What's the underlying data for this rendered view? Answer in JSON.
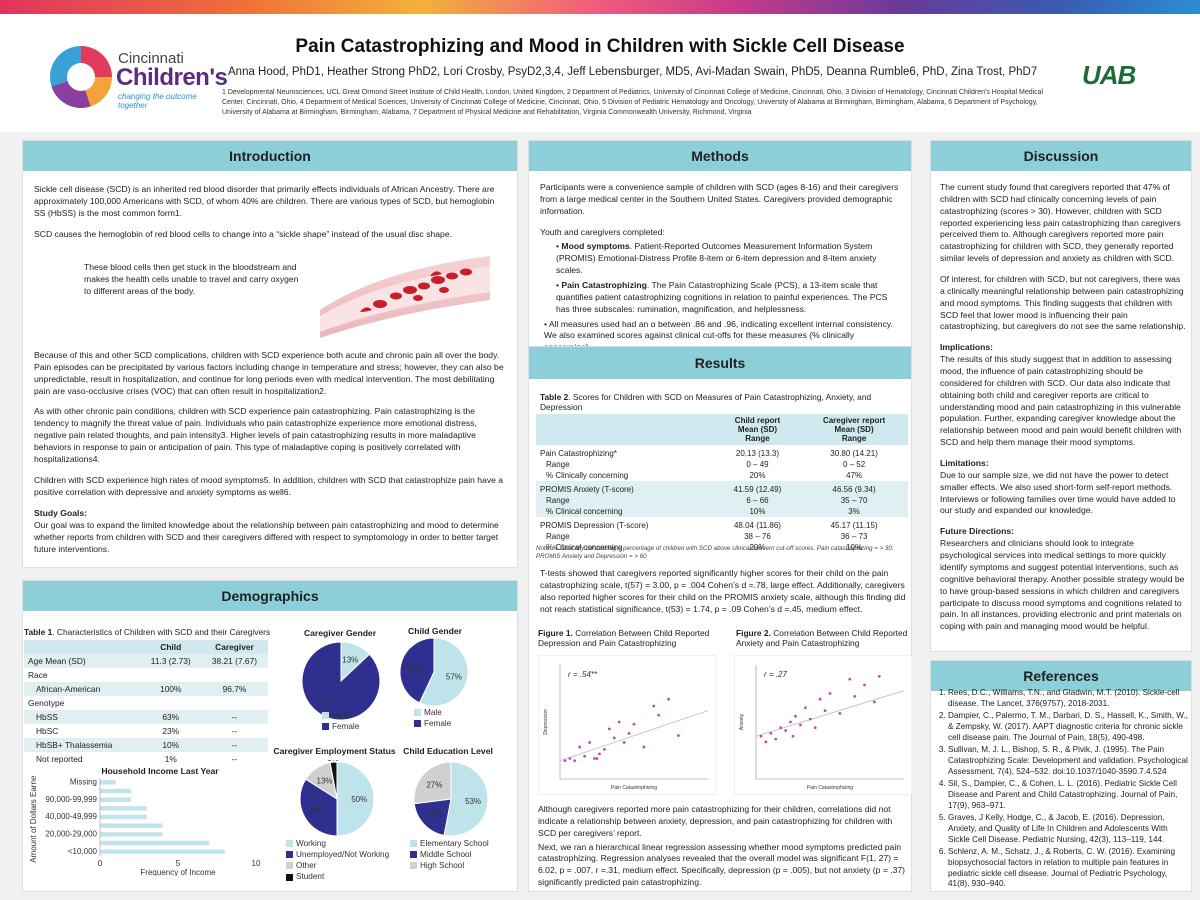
{
  "header": {
    "title": "Pain Catastrophizing and Mood in Children with Sickle Cell Disease",
    "authors": "Anna Hood, PhD1, Heather Strong PhD2, Lori Crosby, PsyD2,3,4, Jeff Lebensburger, MD5, Avi-Madan Swain, PhD5, Deanna Rumble6, PhD, Zina Trost, PhD7",
    "affiliations": "1 Developmental Neurosciences, UCL Great Ormond Street Institute of Child Health, London, United Kingdom, 2 Department of Pediatrics, University of Cincinnati College of Medicine, Cincinnati, Ohio, 3 Division of Hematology, Cincinnati Children's Hospital Medical Center, Cincinnati, Ohio, 4 Department of Medical Sciences, University of Cincinnati College of Medicine, Cincinnati, Ohio, 5 Division of Pediatric Hematology and Oncology, University of Alabama at Birmingham, Birmingham, Alabama, 6 Department of Psychology, University of Alabama at Birmingham, Birmingham, Alabama, 7 Department of Physical Medicine and Rehabilitation, Virginia Commonwealth University, Richmond, Virginia",
    "logo_left_line1": "Cincinnati",
    "logo_left_line2": "Children's",
    "logo_left_tagline": "changing the outcome together",
    "logo_right": "UAB"
  },
  "introduction": {
    "heading": "Introduction",
    "p1": "Sickle cell disease (SCD) is an inherited red blood disorder that primarily effects individuals of African Ancestry. There are approximately 100,000 Americans with SCD, of whom 40% are children. There are various types of SCD, but hemoglobin SS (HbSS) is the most common form1.",
    "p2": "SCD causes the hemoglobin of red blood cells to change into a “sickle shape” instead of the usual disc shape.",
    "p3": "These blood cells then get stuck in the bloodstream and makes the health cells unable to travel and carry oxygen to different areas of the body.",
    "p4": "Because of this and other SCD complications, children with SCD experience both acute and chronic pain all over the body. Pain episodes can be precipitated by various factors including change in temperature and stress; however, they can also be unpredictable, result in hospitalization, and continue for long periods even with medical intervention. The most debilitating pain are vaso-occlusive crises (VOC) that can often result in hospitalization2.",
    "p5": "As with other chronic pain conditions, children with SCD experience pain catastrophizing. Pain catastrophizing is the tendency to magnify the threat value of pain. Individuals who pain catastrophize experience more emotional distress, negative pain related thoughts, and pain intensity3. Higher levels of pain catastrophizing results in more maladaptive behaviors in response to pain or anticipation of pain. This type of maladaptive coping is positively correlated with hospitalizations4.",
    "p6": "Children with SCD experience high rates of mood symptoms5. In addition, children with SCD that catastrophize pain have a positive correlation with depressive and anxiety symptoms as well6.",
    "goals_label": "Study Goals:",
    "goals_text": "Our goal was to expand the limited knowledge about the relationship between pain catastrophizing and mood to determine whether reports from children with SCD and their caregivers differed with respect to symptomology in order to better target future interventions."
  },
  "demographics": {
    "heading": "Demographics",
    "table1_caption_label": "Table 1",
    "table1_caption": ". Characteristics of Children with SCD and their Caregivers",
    "table1_headers": [
      "",
      "Child",
      "Caregiver"
    ],
    "table1_rows": [
      [
        "Age Mean (SD)",
        "11.3 (2.73)",
        "38.21 (7.67)"
      ],
      [
        "Race",
        "",
        ""
      ],
      [
        "African-American",
        "100%",
        "96.7%"
      ],
      [
        "Genotype",
        "",
        ""
      ],
      [
        "HbSS",
        "63%",
        "--"
      ],
      [
        "HbSC",
        "23%",
        "--"
      ],
      [
        "HbSB+ Thalassemia",
        "10%",
        "--"
      ],
      [
        "Not reported",
        "1%",
        "--"
      ]
    ],
    "income_chart": {
      "title": "Household Income Last Year",
      "ylabel": "Amount of Dollars Earned",
      "xlabel": "Frequency of Income",
      "tick_labels_y": [
        "Missing",
        "90,000-99,999",
        "40,000-49,999",
        "20,000-29,000",
        "<10,000"
      ],
      "tick_labels_x": [
        "0",
        "5",
        "10"
      ]
    }
  },
  "methods": {
    "heading": "Methods",
    "p1": "Participants were a convenience sample of children with SCD (ages 8-16) and their caregivers from a large medical center in the Southern United States. Caregivers provided demographic information.",
    "p2": "Youth and caregivers completed:",
    "b1_label": "Mood symptoms",
    "b1_text": ". Patient-Reported Outcomes Measurement Information System (PROMIS) Emotional-Distress Profile 8-item or 6-item depression and 8-item anxiety scales.",
    "b2_label": "Pain Catastrophizing",
    "b2_text": ". The Pain Catastrophizing Scale (PCS), a 13-item scale that quantifies patient catastrophizing cognitions in relation to painful experiences. The PCS has three subscales: rumination, magnification, and helplessness.",
    "b3_text": "All measures used had an α between .86 and .96, indicating excellent internal consistency. We also examined scores against clinical cut-offs for these measures (% clinically concerning)."
  },
  "results": {
    "heading": "Results",
    "table2_caption_label": "Table 2",
    "table2_caption": ". Scores for Children with SCD on Measures of Pain Catastrophizing, Anxiety, and Depression",
    "table2_headers": [
      "",
      "Child report\nMean (SD)\nRange",
      "Caregiver report\nMean (SD)\nRange"
    ],
    "table2_rows": [
      [
        "Pain Catastrophizing*",
        "20.13 (13.3)",
        "30.80 (14.21)"
      ],
      [
        "Range",
        "0 – 49",
        "0 – 52"
      ],
      [
        "% Clinically concerning",
        "20%",
        "47%"
      ],
      [
        "PROMIS Anxiety (T-score)",
        "41.59 (12.49)",
        "46.56 (9.34)"
      ],
      [
        "Range",
        "6 – 66",
        "35 – 70"
      ],
      [
        "% Clinical concerning",
        "10%",
        "3%"
      ],
      [
        "PROMIS Depression (T-score)",
        "48.04 (11.86)",
        "45.17 (11.15)"
      ],
      [
        "Range",
        "38 – 76",
        "36 – 73"
      ],
      [
        "% Clinical concerning",
        "20%",
        "10%"
      ]
    ],
    "table2_note": "Note: % Clinically concerning = percentage of children with SCD above clinical concern cut-off scores. Pain catastrophizing = > 30, PROMIS Anxiety and Depression = > 60",
    "p1": "T-tests showed that caregivers reported significantly higher scores for their child on the pain catastrophizing scale, t(57) = 3.00, p = .004 Cohen’s d =.78, large effect. Additionally, caregivers also reported higher scores for their child on the PROMIS anxiety scale, although this finding did not reach statistical significance, t(53) = 1.74, p = .09 Cohen’s d =.45, medium effect.",
    "fig1_label": "Figure 1.",
    "fig1_caption": " Correlation Between Child Reported Depression and Pain Catastrophizing",
    "fig1_r": "r  = .54**",
    "fig1_ylabel": "Depression",
    "fig1_xlabel": "Pain Catastrophizing",
    "fig2_label": "Figure 2.",
    "fig2_caption": " Correlation Between Child Reported Anxiety and Pain Catastrophizing",
    "fig2_r": "r  = .27",
    "fig2_ylabel": "Anxiety",
    "fig2_xlabel": "Pain Catastrophizing",
    "p2": "Although caregivers reported more pain catastrophizing for their children, correlations did not indicate a relationship between anxiety, depression, and pain catastrophizing for children with SCD per caregivers’ report.",
    "p3": "Next, we ran a hierarchical linear regression assessing whether mood symptoms predicted pain catastrophizing. Regression analyses revealed that the overall model was significant F(1, 27) = 6.02, p = .007, r =.31, medium effect. Specifically, depression (p = .005), but not anxiety (p = .37) significantly predicted pain catastrophizing."
  },
  "discussion": {
    "heading": "Discussion",
    "p1": "The current study found that caregivers reported that 47% of children with SCD had clinically concerning levels of pain catastrophizing (scores > 30). However, children with SCD reported experiencing less pain catastrophizing than caregivers perceived them to. Although caregivers reported more pain catastrophizing for children with SCD, they generally reported similar levels of depression and anxiety as children with SCD.",
    "p2": "Of interest, for children with SCD, but not caregivers, there was a clinically meaningful relationship between pain catastrophizing and mood symptoms. This finding suggests that children with SCD feel that lower mood is influencing their pain catastrophizing, but caregivers do not see the same relationship.",
    "impl_label": "Implications:",
    "impl_text": "The results of this study suggest that in addition to assessing mood, the influence of pain catastrophizing should be considered for children with SCD. Our data also indicate that obtaining both child and caregiver reports are critical to understanding mood and pain catastrophizing in this vulnerable population. Further, expanding caregiver knowledge about the relationship between mood and pain would benefit children with SCD and help them manage their mood symptoms.",
    "lim_label": "Limitations:",
    "lim_text": "Due to our sample size, we did not have the power to detect smaller effects. We also used short-form self-report methods. Interviews or following families over time would have added to our study and expanded our knowledge.",
    "fut_label": "Future Directions:",
    "fut_text": "Researchers and clinicians should look to integrate psychological services into medical settings to more quickly identify symptoms and suggest potential interventions, such as cognitive behavioral therapy. Another possible strategy would be to have group-based sessions in which children and caregivers participate to discuss mood symptoms and cognitions related to pain. In all instances, providing electronic and print materials on coping with pain and managing mood would be helpful."
  },
  "references": {
    "heading": "References",
    "items": [
      "Rees, D.C., Williams, T.N., and Gladwin, M.T. (2010). Sickle-cell disease. The Lancet, 376(9757), 2018-2031.",
      "Dampier, C., Palermo, T. M., Darbari, D. S., Hassell, K., Smith, W., & Zempsky, W. (2017). AAPT diagnostic criteria for chronic sickle cell disease pain. The Journal of Pain, 18(5), 490-498.",
      "Sullivan, M. J. L., Bishop, S. R., & Pivik, J. (1995). The Pain Catastrophizing Scale: Development and validation. Psychological Assessment, 7(4), 524–532. doi:10.1037/1040-3590.7.4.524",
      "Sil, S., Dampier, C., & Cohen, L. L. (2016). Pediatric Sickle Cell Disease and Parent and Child Catastrophizing. Journal of Pain, 17(9), 963–971.",
      "Graves, J Kelly, Hodge, C., & Jacob, E. (2016). Depression, Anxiety, and Quality of Life In Children and Adolescents With Sickle Cell Disease. Pediatric Nursing, 42(3), 113–119, 144.",
      "Schlenz, A. M., Schatz, J., & Roberts, C. W. (2016). Examining biopsychosocial factors in relation to multiple pain features in pediatric sickle cell disease. Journal of Pediatric Psychology, 41(8), 930–940."
    ]
  },
  "colors": {
    "teal_head": "#8ccfd8",
    "navy": "#2e2f8f",
    "light_blue": "#bfe3ea",
    "grey": "#d0d0d0",
    "black": "#111111"
  },
  "chart_data": [
    {
      "type": "pie",
      "title": "Caregiver Gender",
      "categories": [
        "Male",
        "Female"
      ],
      "values": [
        13,
        87
      ],
      "labels": [
        "13%",
        "87%"
      ]
    },
    {
      "type": "pie",
      "title": "Child Gender",
      "categories": [
        "Male",
        "Female"
      ],
      "values": [
        57,
        43
      ],
      "labels": [
        "57%",
        "43%"
      ]
    },
    {
      "type": "pie",
      "title": "Caregiver Employment Status",
      "categories": [
        "Working",
        "Unemployed/Not Working",
        "Other",
        "Student"
      ],
      "values": [
        50,
        34,
        13,
        3
      ],
      "labels": [
        "50%",
        "34%",
        "13%",
        "3%"
      ]
    },
    {
      "type": "pie",
      "title": "Child Education Level",
      "categories": [
        "Elementary School",
        "Middle School",
        "High School"
      ],
      "values": [
        53,
        20,
        27
      ],
      "labels": [
        "53%",
        "20%",
        "27%"
      ]
    },
    {
      "type": "bar",
      "orientation": "horizontal",
      "title": "Household Income Last Year",
      "xlabel": "Frequency of Income",
      "ylabel": "Amount of Dollars Earned",
      "xlim": [
        0,
        10
      ],
      "categories": [
        "Missing",
        "",
        "90,000-99,999",
        "",
        "40,000-49,999",
        "",
        "20,000-29,000",
        "",
        "<10,000"
      ],
      "values": [
        1,
        2,
        2,
        3,
        3,
        4,
        4,
        7,
        8
      ]
    },
    {
      "type": "scatter",
      "title": "Figure 1. Correlation Between Child Reported Depression and Pain Catastrophizing",
      "xlabel": "Pain Catastrophizing",
      "ylabel": "Depression",
      "annotation": "r = .54**",
      "xlim": [
        0,
        60
      ],
      "ylim": [
        30,
        80
      ],
      "x": [
        2,
        4,
        6,
        8,
        10,
        12,
        14,
        15,
        16,
        18,
        20,
        22,
        24,
        26,
        28,
        30,
        34,
        38,
        40,
        44,
        48
      ],
      "y": [
        38,
        39,
        38,
        44,
        40,
        46,
        39,
        39,
        41,
        43,
        52,
        48,
        55,
        46,
        50,
        54,
        44,
        62,
        58,
        65,
        49
      ],
      "trend": [
        [
          0,
          38
        ],
        [
          60,
          60
        ]
      ]
    },
    {
      "type": "scatter",
      "title": "Figure 2. Correlation Between Child Reported Anxiety and Pain Catastrophizing",
      "xlabel": "Pain Catastrophizing",
      "ylabel": "Anxiety",
      "annotation": "r = .27",
      "xlim": [
        0,
        60
      ],
      "ylim": [
        0,
        80
      ],
      "x": [
        2,
        4,
        6,
        8,
        10,
        12,
        14,
        15,
        16,
        18,
        20,
        22,
        24,
        26,
        28,
        30,
        34,
        38,
        40,
        44,
        48,
        50
      ],
      "y": [
        30,
        26,
        32,
        28,
        36,
        34,
        40,
        30,
        44,
        38,
        50,
        42,
        36,
        56,
        48,
        60,
        46,
        70,
        58,
        66,
        54,
        72
      ],
      "trend": [
        [
          0,
          30
        ],
        [
          60,
          62
        ]
      ]
    }
  ]
}
